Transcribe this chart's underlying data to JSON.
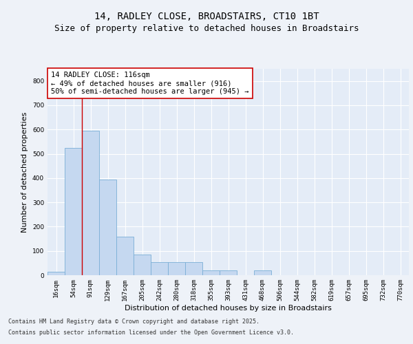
{
  "title_line1": "14, RADLEY CLOSE, BROADSTAIRS, CT10 1BT",
  "title_line2": "Size of property relative to detached houses in Broadstairs",
  "xlabel": "Distribution of detached houses by size in Broadstairs",
  "ylabel": "Number of detached properties",
  "categories": [
    "16sqm",
    "54sqm",
    "91sqm",
    "129sqm",
    "167sqm",
    "205sqm",
    "242sqm",
    "280sqm",
    "318sqm",
    "355sqm",
    "393sqm",
    "431sqm",
    "468sqm",
    "506sqm",
    "544sqm",
    "582sqm",
    "619sqm",
    "657sqm",
    "695sqm",
    "732sqm",
    "770sqm"
  ],
  "values": [
    15,
    525,
    595,
    395,
    160,
    85,
    55,
    55,
    55,
    20,
    20,
    0,
    20,
    0,
    0,
    0,
    0,
    0,
    0,
    0,
    0
  ],
  "bar_color": "#c5d8f0",
  "bar_edge_color": "#7aaed6",
  "vline_x": 1.5,
  "vline_color": "#cc0000",
  "annotation_text": "14 RADLEY CLOSE: 116sqm\n← 49% of detached houses are smaller (916)\n50% of semi-detached houses are larger (945) →",
  "annotation_box_facecolor": "#ffffff",
  "annotation_box_edgecolor": "#cc0000",
  "ylim": [
    0,
    850
  ],
  "yticks": [
    0,
    100,
    200,
    300,
    400,
    500,
    600,
    700,
    800
  ],
  "background_color": "#eef2f8",
  "plot_background_color": "#e4ecf7",
  "grid_color": "#ffffff",
  "footer_line1": "Contains HM Land Registry data © Crown copyright and database right 2025.",
  "footer_line2": "Contains public sector information licensed under the Open Government Licence v3.0.",
  "title_fontsize": 10,
  "subtitle_fontsize": 9,
  "axis_label_fontsize": 8,
  "tick_fontsize": 6.5,
  "annotation_fontsize": 7.5,
  "footer_fontsize": 6
}
